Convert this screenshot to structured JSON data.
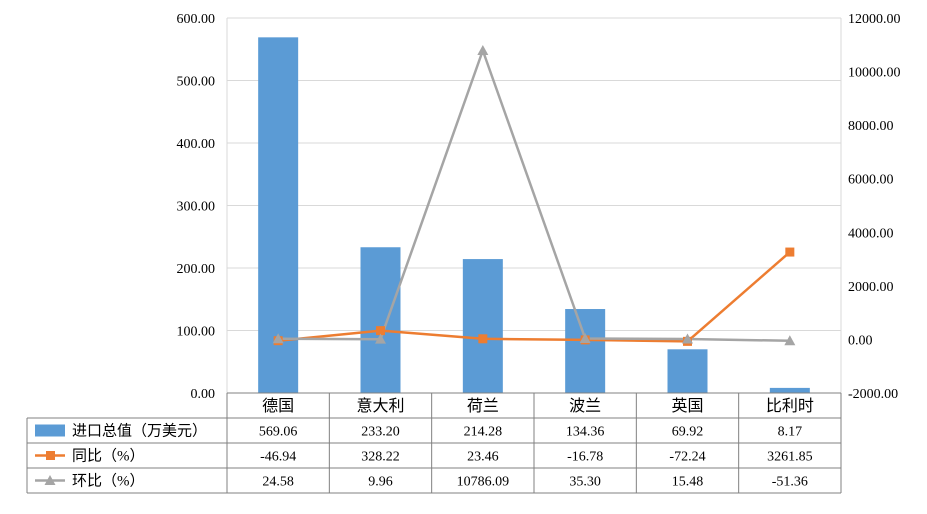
{
  "chart_data": {
    "type": "bar",
    "categories": [
      "德国",
      "意大利",
      "荷兰",
      "波兰",
      "英国",
      "比利时"
    ],
    "series": [
      {
        "name": "进口总值（万美元）",
        "type": "bar",
        "axis": "left",
        "color": "#5B9BD5",
        "values": [
          569.06,
          233.2,
          214.28,
          134.36,
          69.92,
          8.17
        ],
        "display": [
          "569.06",
          "233.20",
          "214.28",
          "134.36",
          "69.92",
          "8.17"
        ]
      },
      {
        "name": "同比（%）",
        "type": "line",
        "axis": "right",
        "color": "#ED7D31",
        "marker": "square",
        "values": [
          -46.94,
          328.22,
          23.46,
          -16.78,
          -72.24,
          3261.85
        ],
        "display": [
          "-46.94",
          "328.22",
          "23.46",
          "-16.78",
          "-72.24",
          "3261.85"
        ]
      },
      {
        "name": "环比（%）",
        "type": "line",
        "axis": "right",
        "color": "#A5A5A5",
        "marker": "triangle",
        "values": [
          24.58,
          9.96,
          10786.09,
          35.3,
          15.48,
          -51.36
        ],
        "display": [
          "24.58",
          "9.96",
          "10786.09",
          "35.30",
          "15.48",
          "-51.36"
        ]
      }
    ],
    "y_left": {
      "min": 0,
      "max": 600,
      "ticks": [
        "600.00",
        "500.00",
        "400.00",
        "300.00",
        "200.00",
        "100.00",
        "0.00"
      ]
    },
    "y_right": {
      "min": -2000,
      "max": 12000,
      "ticks": [
        "12000.00",
        "10000.00",
        "8000.00",
        "6000.00",
        "4000.00",
        "2000.00",
        "0.00",
        "-2000.00"
      ]
    },
    "grid": true,
    "legend": "data-table-below"
  }
}
